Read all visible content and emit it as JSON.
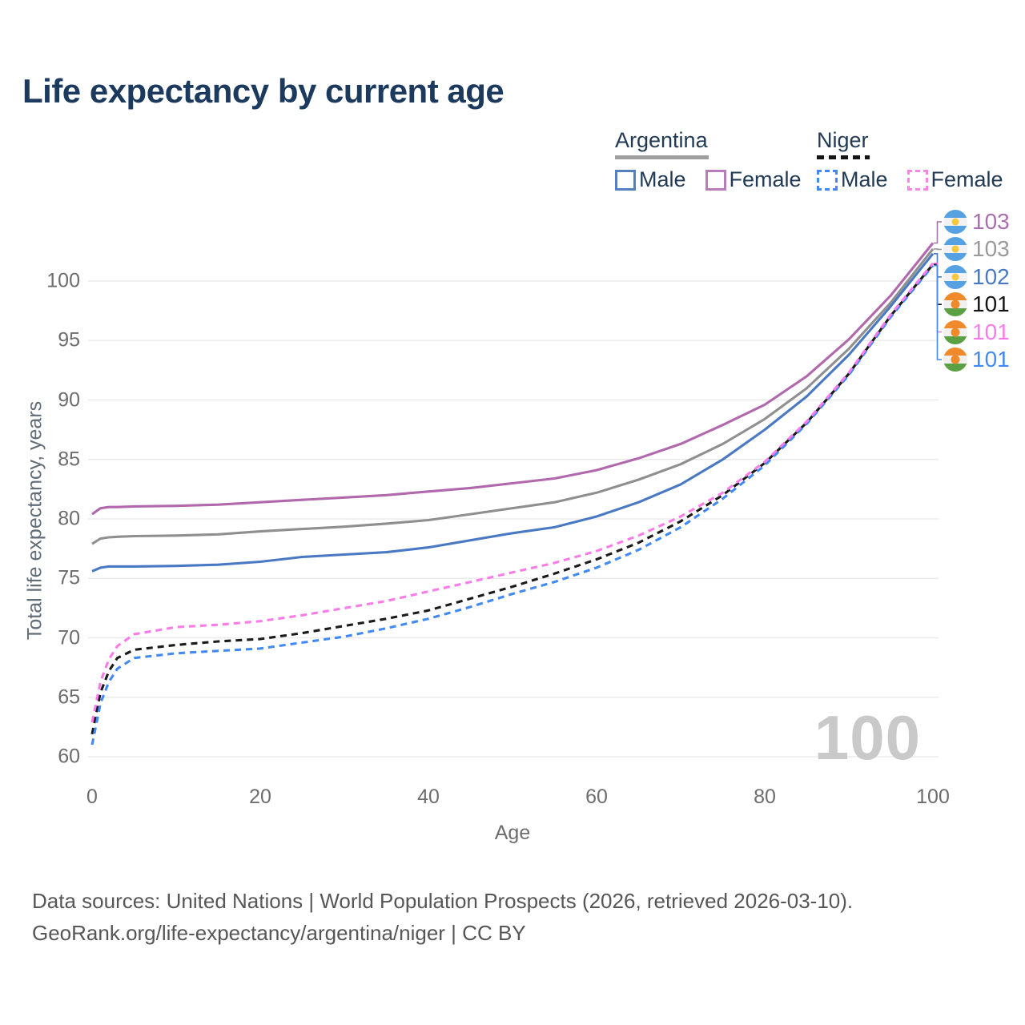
{
  "title": "Life expectancy by current age",
  "age_counter": "100",
  "legend": {
    "groups": [
      {
        "name": "Argentina",
        "line_style": "solid",
        "line_color": "#9e9e9e",
        "items": [
          {
            "label": "Male",
            "color": "#5580c0",
            "style": "solid"
          },
          {
            "label": "Female",
            "color": "#b87cba",
            "style": "solid"
          }
        ]
      },
      {
        "name": "Niger",
        "line_style": "dashed",
        "line_color": "#141414",
        "items": [
          {
            "label": "Male",
            "color": "#4387f4",
            "style": "dashed"
          },
          {
            "label": "Female",
            "color": "#fb85e4",
            "style": "dashed"
          }
        ]
      }
    ]
  },
  "endpoints": [
    {
      "country": "argentina",
      "value": "103",
      "color": "#a96fad",
      "series_index": 0
    },
    {
      "country": "argentina",
      "value": "103",
      "color": "#9a9a9a",
      "series_index": 1
    },
    {
      "country": "argentina",
      "value": "102",
      "color": "#4a79c4",
      "series_index": 2
    },
    {
      "country": "niger",
      "value": "101",
      "color": "#141414",
      "series_index": 4
    },
    {
      "country": "niger",
      "value": "101",
      "color": "#fb7ce8",
      "series_index": 3
    },
    {
      "country": "niger",
      "value": "101",
      "color": "#4189f5",
      "series_index": 5
    }
  ],
  "flags": {
    "argentina": {
      "top": "#55a1e2",
      "mid": "#f2f2f2",
      "bottom": "#55a1e2",
      "dot": "#f6c83d",
      "dot_size": 9
    },
    "niger": {
      "top": "#f08a2b",
      "mid": "#f0f0f0",
      "bottom": "#5ba043",
      "dot": "#f08a2b",
      "dot_size": 11
    }
  },
  "chart_data": {
    "type": "line",
    "title": "Life expectancy by current age",
    "xlabel": "Age",
    "ylabel": "Total life expectancy, years",
    "x_ticks": [
      0,
      20,
      40,
      60,
      80,
      100
    ],
    "y_ticks": [
      60,
      65,
      70,
      75,
      80,
      85,
      90,
      95,
      100
    ],
    "xlim": [
      0,
      100
    ],
    "ylim": [
      59.5,
      104
    ],
    "grid": "horizontal",
    "legend_position": "top-right",
    "x": [
      0,
      1,
      2,
      3,
      5,
      10,
      15,
      20,
      25,
      30,
      35,
      40,
      45,
      50,
      55,
      60,
      65,
      70,
      75,
      80,
      85,
      90,
      95,
      100
    ],
    "series": [
      {
        "name": "Argentina Female",
        "color": "#b168ac",
        "dash": "solid",
        "values": [
          80.4,
          80.9,
          81.0,
          81.0,
          81.05,
          81.1,
          81.2,
          81.4,
          81.6,
          81.8,
          82.0,
          82.3,
          82.6,
          83.0,
          83.4,
          84.1,
          85.1,
          86.3,
          87.9,
          89.6,
          92.0,
          95.1,
          98.8,
          103.2
        ]
      },
      {
        "name": "Argentina Both sexes",
        "color": "#8f8f8f",
        "dash": "solid",
        "values": [
          77.9,
          78.35,
          78.45,
          78.5,
          78.55,
          78.6,
          78.7,
          78.95,
          79.15,
          79.35,
          79.6,
          79.9,
          80.4,
          80.9,
          81.4,
          82.2,
          83.3,
          84.6,
          86.3,
          88.4,
          91.0,
          94.3,
          98.2,
          102.7
        ]
      },
      {
        "name": "Argentina Male",
        "color": "#4a79c4",
        "dash": "solid",
        "values": [
          75.6,
          75.9,
          76.0,
          76.0,
          76.0,
          76.05,
          76.15,
          76.4,
          76.8,
          77.0,
          77.2,
          77.6,
          78.2,
          78.8,
          79.3,
          80.2,
          81.4,
          82.9,
          85.0,
          87.5,
          90.3,
          93.8,
          97.9,
          102.3
        ]
      },
      {
        "name": "Niger Female",
        "color": "#fb7ce8",
        "dash": "dashed",
        "values": [
          62.9,
          66.3,
          68.2,
          69.3,
          70.3,
          70.9,
          71.1,
          71.4,
          71.9,
          72.5,
          73.1,
          73.9,
          74.7,
          75.5,
          76.3,
          77.3,
          78.6,
          80.2,
          82.2,
          84.8,
          88.2,
          92.3,
          97.2,
          101.5
        ]
      },
      {
        "name": "Niger Both sexes",
        "color": "#1a1a1a",
        "dash": "dashed",
        "values": [
          61.9,
          65.4,
          67.2,
          68.3,
          69.0,
          69.4,
          69.7,
          69.9,
          70.4,
          71.0,
          71.6,
          72.3,
          73.3,
          74.3,
          75.4,
          76.6,
          78.0,
          79.8,
          82.0,
          84.7,
          88.1,
          92.2,
          97.1,
          101.4
        ]
      },
      {
        "name": "Niger Male",
        "color": "#4189f5",
        "dash": "dashed",
        "values": [
          61.0,
          64.5,
          66.3,
          67.4,
          68.3,
          68.7,
          68.9,
          69.1,
          69.6,
          70.1,
          70.8,
          71.6,
          72.6,
          73.7,
          74.7,
          75.9,
          77.4,
          79.3,
          81.7,
          84.5,
          88.0,
          92.1,
          97.0,
          101.3
        ]
      }
    ]
  },
  "footer": {
    "line1": "Data sources: United Nations | World Population Prospects (2026, retrieved 2026-03-10).",
    "line2": "GeoRank.org/life-expectancy/argentina/niger | CC BY"
  }
}
